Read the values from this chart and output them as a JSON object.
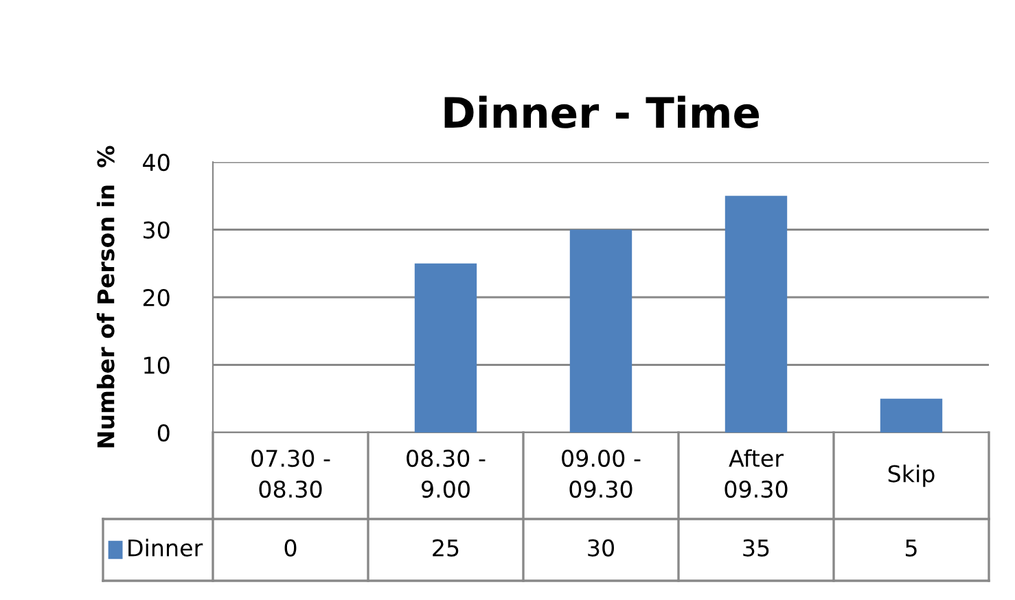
{
  "chart_data": {
    "type": "bar",
    "title": "Dinner - Time",
    "ylabel": "Number of Person in  %",
    "categories": [
      "07.30 -\n08.30",
      "08.30 -\n9.00",
      "09.00 -\n09.30",
      "After\n09.30",
      "Skip"
    ],
    "series": [
      {
        "name": "Dinner",
        "color": "#4f81bd",
        "values": [
          0,
          25,
          30,
          35,
          5
        ]
      }
    ],
    "ylim": [
      0,
      40
    ],
    "yticks": [
      0,
      10,
      20,
      30,
      40
    ],
    "grid": "y",
    "legend": "bottom",
    "data_labels": true
  }
}
